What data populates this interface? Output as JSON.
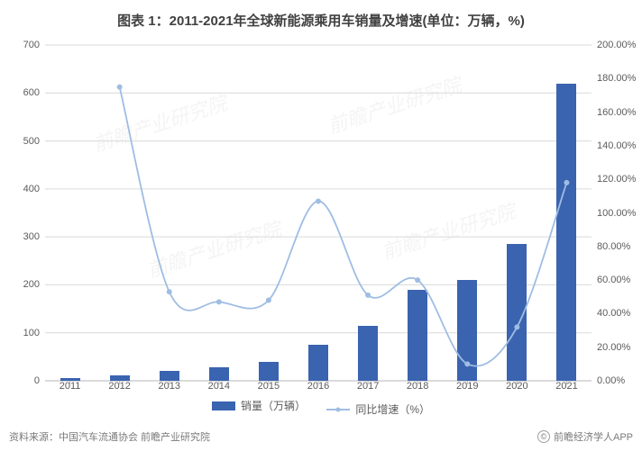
{
  "title": "图表 1：2011-2021年全球新能源乘用车销量及增速(单位：万辆，%)",
  "chart": {
    "type": "bar+line",
    "categories": [
      "2011",
      "2012",
      "2013",
      "2014",
      "2015",
      "2016",
      "2017",
      "2018",
      "2019",
      "2020",
      "2021"
    ],
    "bar_series": {
      "name": "销量（万辆）",
      "values": [
        5,
        12,
        20,
        28,
        40,
        75,
        115,
        190,
        210,
        285,
        620
      ],
      "color": "#3a63b0",
      "width_ratio": 0.4
    },
    "line_series": {
      "name": "同比增速（%）",
      "values": [
        null,
        175,
        53,
        47,
        48,
        107,
        51,
        60,
        10,
        32,
        118
      ],
      "color": "#9fbde3",
      "marker_size": 3,
      "line_width": 1.8
    },
    "y_left": {
      "min": 0,
      "max": 700,
      "step": 100
    },
    "y_right": {
      "min": 0,
      "max": 200,
      "step": 20,
      "suffix": "%",
      "decimals": 2
    },
    "grid_color": "#d9d9d9",
    "axis_color": "#b6b6b6",
    "background": "#ffffff",
    "title_fontsize": 15,
    "tick_fontsize": 11
  },
  "legend": {
    "bar_label": "销量（万辆）",
    "line_label": "同比增速（%）"
  },
  "footer": {
    "source": "资料来源：中国汽车流通协会 前瞻产业研究院",
    "right": "前瞻经济学人APP",
    "copyright_symbol": "©"
  },
  "watermark": "前瞻产业研究院"
}
